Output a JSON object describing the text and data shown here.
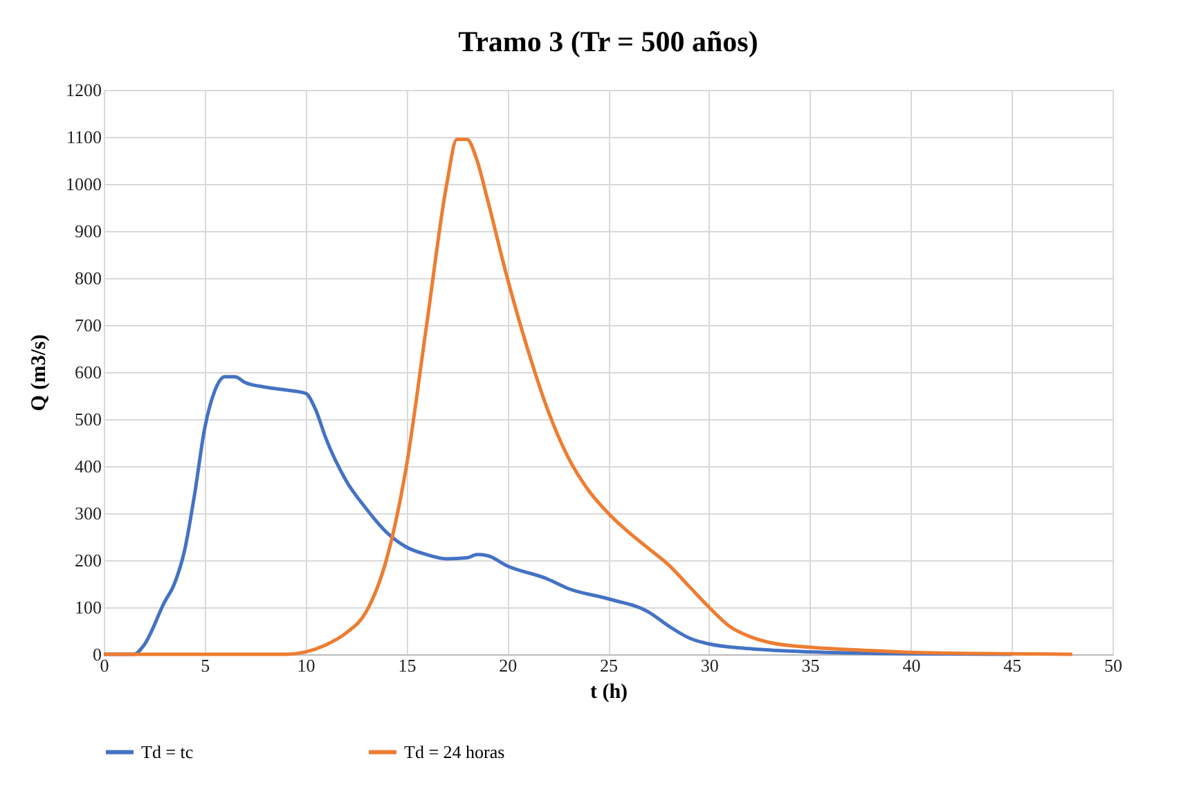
{
  "chart_data": {
    "type": "line",
    "title": "Tramo 3  (Tr = 500 años)",
    "xlabel": "t (h)",
    "ylabel": "Q (m3/s)",
    "xlim": [
      0,
      50
    ],
    "xticks": [
      0,
      5,
      10,
      15,
      20,
      25,
      30,
      35,
      40,
      45,
      50
    ],
    "ylim": [
      0,
      1200
    ],
    "yticks": [
      0,
      100,
      200,
      300,
      400,
      500,
      600,
      700,
      800,
      900,
      1000,
      1100,
      1200
    ],
    "grid": true,
    "legend": "bottom",
    "marker": "none",
    "line_style": "solid",
    "series": [
      {
        "name": "Td = tc",
        "color": "#4472c4",
        "x": [
          0,
          1.5,
          2,
          3,
          3.5,
          4,
          4.5,
          5,
          5.5,
          6,
          6.5,
          7,
          8,
          9,
          10,
          10.5,
          11,
          12,
          13,
          14,
          15,
          16,
          17,
          18,
          18.5,
          19,
          20,
          22,
          23,
          25,
          27,
          28,
          29,
          30,
          32,
          35,
          40,
          45
        ],
        "values": [
          0,
          0,
          20,
          110,
          150,
          220,
          340,
          480,
          560,
          590,
          590,
          578,
          568,
          562,
          555,
          520,
          460,
          370,
          310,
          260,
          228,
          212,
          203,
          205,
          212,
          210,
          188,
          160,
          140,
          118,
          90,
          60,
          35,
          22,
          12,
          5,
          1,
          0
        ]
      },
      {
        "name": "Td = 24 horas",
        "color": "#ed7d31",
        "x": [
          0,
          9,
          10,
          11,
          12,
          13,
          14,
          15,
          16,
          17,
          17.5,
          18,
          18.5,
          19,
          20,
          21,
          22,
          23,
          24,
          25,
          26,
          27,
          28,
          29,
          30,
          31,
          32,
          33,
          35,
          38,
          40,
          45,
          48
        ],
        "values": [
          0,
          0,
          5,
          20,
          45,
          90,
          200,
          400,
          700,
          1000,
          1095,
          1095,
          1050,
          970,
          800,
          650,
          520,
          420,
          350,
          300,
          260,
          225,
          190,
          145,
          100,
          60,
          38,
          25,
          15,
          8,
          4,
          1,
          0
        ]
      }
    ]
  }
}
